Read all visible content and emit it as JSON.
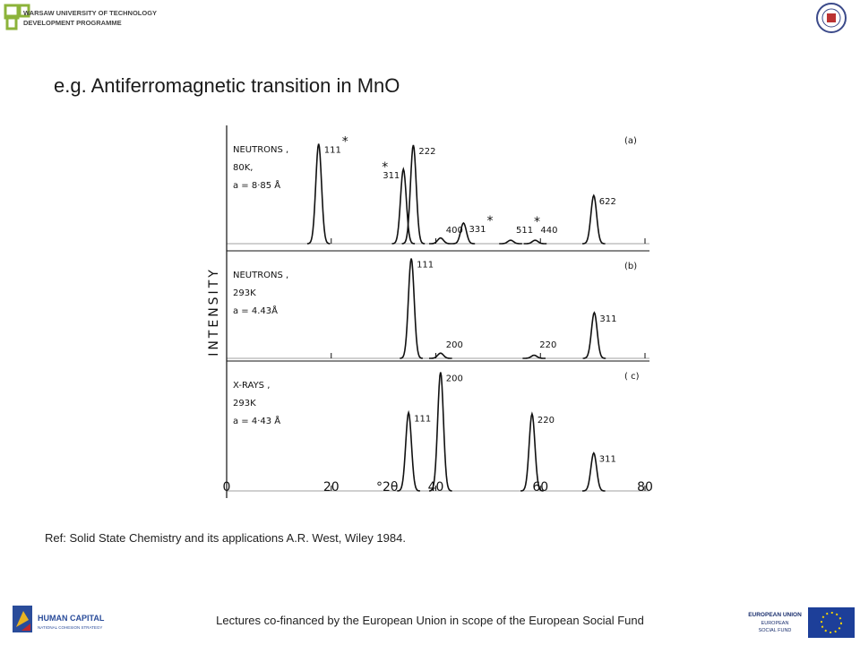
{
  "header": {
    "institution": [
      "WARSAW UNIVERSITY OF TECHNOLOGY",
      "DEVELOPMENT PROGRAMME"
    ]
  },
  "title": "e.g. Antiferromagnetic transition in MnO",
  "figure": {
    "y_label": "INTENSITY",
    "x_label": "°2θ",
    "xlim": [
      0,
      80
    ],
    "xticks": [
      0,
      20,
      40,
      60,
      80
    ],
    "ylim": [
      0,
      100
    ],
    "panels": [
      {
        "tag": "(a)",
        "notes": [
          "NEUTRONS ,",
          "80K,",
          "a = 8·85 Å"
        ],
        "peaks": [
          {
            "label": "111",
            "x": 17.6,
            "height": 87,
            "marker": "*"
          },
          {
            "label": "311",
            "x": 33.8,
            "height": 65,
            "marker": "*"
          },
          {
            "label": "222",
            "x": 35.7,
            "height": 86
          },
          {
            "label": "400",
            "x": 40.9,
            "height": 5
          },
          {
            "label": "331",
            "x": 45.3,
            "height": 18,
            "marker": "*"
          },
          {
            "label": "511",
            "x": 54.3,
            "height": 3,
            "marker": "*"
          },
          {
            "label": "440",
            "x": 59,
            "height": 3
          },
          {
            "label": "622",
            "x": 70.2,
            "height": 42
          }
        ]
      },
      {
        "tag": "(b)",
        "notes": [
          "NEUTRONS ,",
          "293K",
          "a = 4.43Å"
        ],
        "peaks": [
          {
            "label": "111",
            "x": 35.3,
            "height": 96
          },
          {
            "label": "200",
            "x": 40.9,
            "height": 5
          },
          {
            "label": "220",
            "x": 58.8,
            "height": 3
          },
          {
            "label": "311",
            "x": 70.3,
            "height": 44
          }
        ]
      },
      {
        "tag": "( c)",
        "notes": [
          "X-RAYS ,",
          "293K",
          "a = 4·43 Å"
        ],
        "peaks": [
          {
            "label": "111",
            "x": 34.8,
            "height": 62
          },
          {
            "label": "200",
            "x": 40.9,
            "height": 94
          },
          {
            "label": "220",
            "x": 58.4,
            "height": 61
          },
          {
            "label": "311",
            "x": 70.2,
            "height": 30
          }
        ]
      }
    ]
  },
  "reference": "Ref: Solid State Chemistry and its applications A.R. West, Wiley 1984.",
  "footer": {
    "left": [
      "HUMAN CAPITAL",
      "NATIONAL COHESION STRATEGY"
    ],
    "center": "Lectures co-financed by the European Union in scope of the European Social Fund",
    "right": [
      "EUROPEAN UNION",
      "EUROPEAN",
      "SOCIAL FUND"
    ]
  }
}
